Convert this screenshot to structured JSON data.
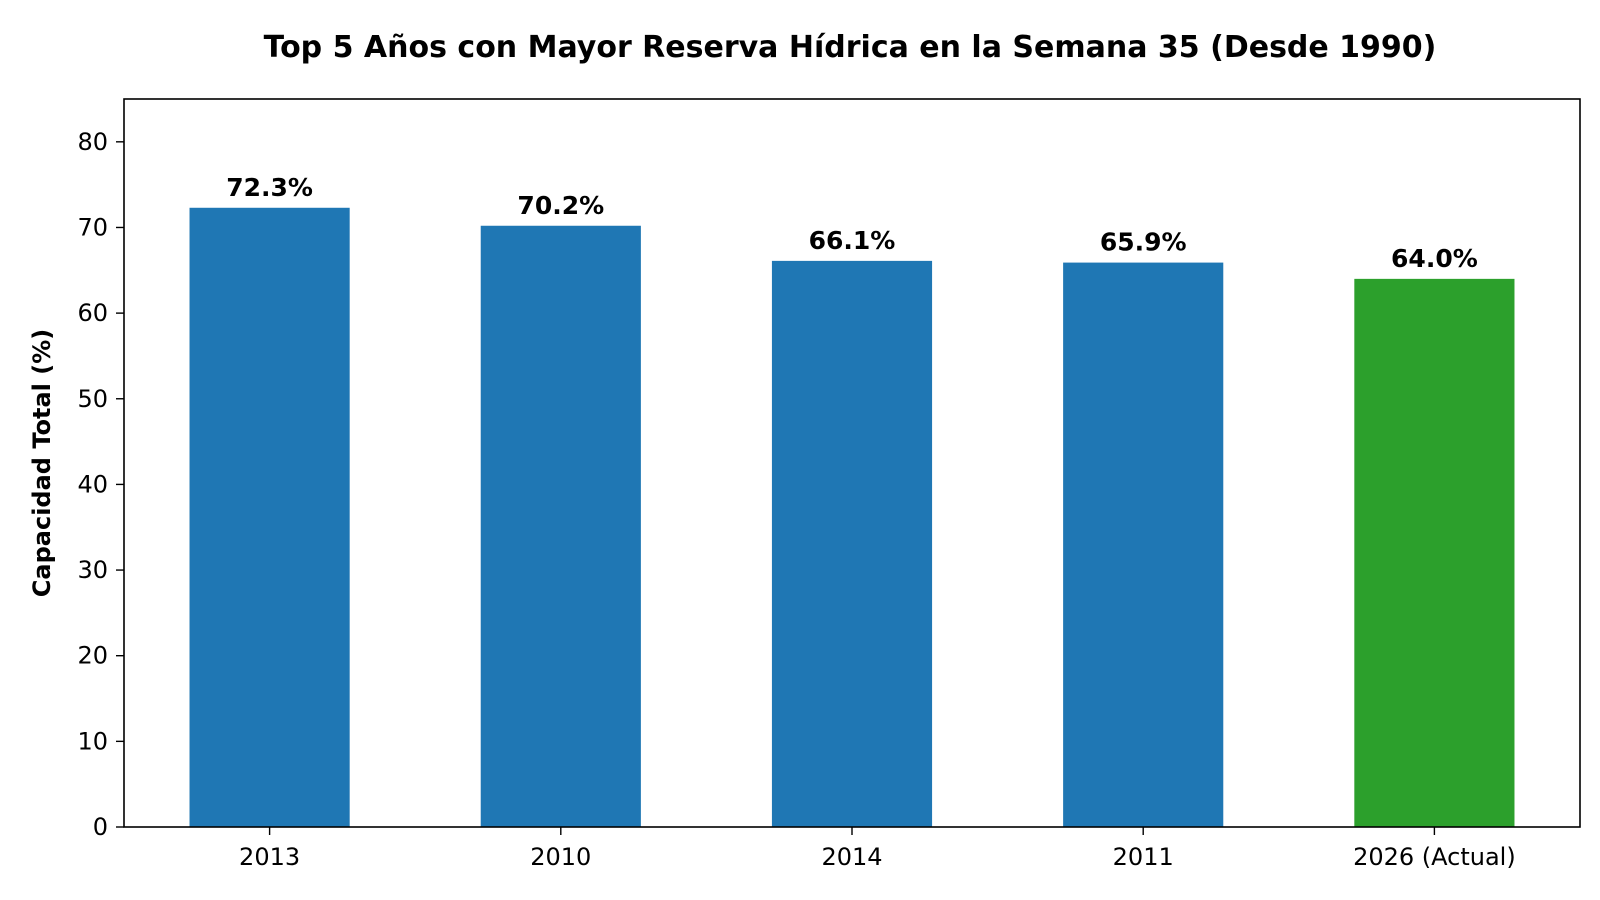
{
  "chart_data": {
    "type": "bar",
    "title": "Top 5 Años con Mayor Reserva Hídrica en la Semana 35 (Desde 1990)",
    "xlabel": "",
    "ylabel": "Capacidad Total (%)",
    "categories": [
      "2013",
      "2010",
      "2014",
      "2011",
      "2026 (Actual)"
    ],
    "values": [
      72.3,
      70.2,
      66.1,
      65.9,
      64.0
    ],
    "data_labels": [
      "72.3%",
      "70.2%",
      "66.1%",
      "65.9%",
      "64.0%"
    ],
    "bar_colors": [
      "#1f77b4",
      "#1f77b4",
      "#1f77b4",
      "#1f77b4",
      "#2ca02c"
    ],
    "ylim": [
      0,
      85
    ],
    "yticks": [
      0,
      10,
      20,
      30,
      40,
      50,
      60,
      70,
      80
    ],
    "grid": false,
    "legend": "none"
  }
}
